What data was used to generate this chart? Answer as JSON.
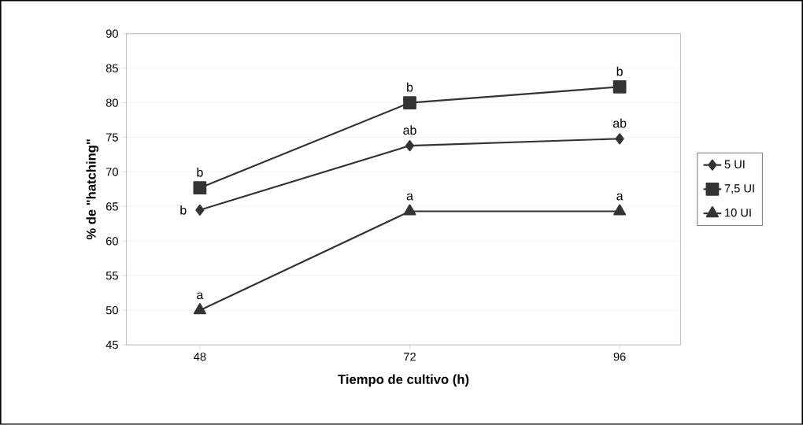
{
  "chart_data": {
    "type": "line",
    "xlabel": "Tiempo de cultivo (h)",
    "ylabel": "% de \"hatching\"",
    "categories": [
      "48",
      "72",
      "96"
    ],
    "series": [
      {
        "name": "5 UI",
        "color": "#333333",
        "marker": "diamond",
        "values": [
          64.5,
          73.8,
          74.8
        ]
      },
      {
        "name": "7,5 UI",
        "color": "#333333",
        "marker": "square",
        "values": [
          67.7,
          80.0,
          82.3
        ]
      },
      {
        "name": "10 UI",
        "color": "#333333",
        "marker": "triangle",
        "values": [
          50.0,
          64.3,
          64.3
        ]
      }
    ],
    "ylim": [
      45,
      90
    ],
    "yticks": [
      45,
      50,
      55,
      60,
      65,
      70,
      75,
      80,
      85,
      90
    ],
    "grid": "y",
    "legend": "right",
    "annotations": [
      {
        "text": "b",
        "x": "48",
        "y": 64.5
      },
      {
        "text": "b",
        "x": "48",
        "y": 67.7
      },
      {
        "text": "a",
        "x": "48",
        "y": 50.0
      },
      {
        "text": "ab",
        "x": "72",
        "y": 73.8
      },
      {
        "text": "b",
        "x": "72",
        "y": 80.0
      },
      {
        "text": "a",
        "x": "72",
        "y": 64.3
      },
      {
        "text": "ab",
        "x": "96",
        "y": 74.8
      },
      {
        "text": "b",
        "x": "96",
        "y": 82.3
      },
      {
        "text": "a",
        "x": "96",
        "y": 64.3
      }
    ]
  }
}
